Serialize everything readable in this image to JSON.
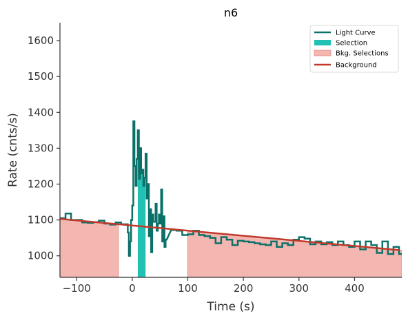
{
  "chart_data": {
    "type": "line",
    "title": "n6",
    "xlabel": "Time (s)",
    "ylabel": "Rate (cnts/s)",
    "xlim": [
      -130,
      485
    ],
    "ylim": [
      940,
      1650
    ],
    "xticks": [
      -100,
      0,
      100,
      200,
      300,
      400
    ],
    "yticks": [
      1000,
      1100,
      1200,
      1300,
      1400,
      1500,
      1600
    ],
    "grid": false,
    "legend_position": "top-right",
    "legend": [
      "Light Curve",
      "Selection",
      "Bkg. Selections",
      "Background"
    ],
    "colors": {
      "light_curve": "#0b7168",
      "selection": "#21c1b4",
      "bkg_selection_fill": "#f4b6b0",
      "bkg_selection_edge": "#e38b83",
      "background": "#c0392b"
    },
    "selection": [
      10,
      24
    ],
    "bkg_selections": [
      [
        -130,
        -25
      ],
      [
        100,
        485
      ]
    ],
    "background": {
      "x": [
        -130,
        480
      ],
      "y": [
        1103,
        1016
      ]
    },
    "light_curve": {
      "coarse_x": [
        -130,
        -120,
        -110,
        -100,
        -90,
        -80,
        -70,
        -60,
        -50,
        -40,
        -30,
        -20,
        -10,
        60,
        70,
        80,
        90,
        100,
        110,
        120,
        130,
        140,
        150,
        160,
        170,
        180,
        190,
        200,
        210,
        220,
        230,
        240,
        250,
        260,
        270,
        280,
        290,
        300,
        310,
        320,
        330,
        340,
        350,
        360,
        370,
        380,
        390,
        400,
        410,
        420,
        430,
        440,
        450,
        460,
        470,
        480
      ],
      "coarse_y": [
        1105,
        1118,
        1100,
        1100,
        1093,
        1092,
        1094,
        1098,
        1090,
        1087,
        1093,
        1088,
        1090,
        1072,
        1072,
        1070,
        1058,
        1060,
        1070,
        1058,
        1055,
        1050,
        1035,
        1052,
        1045,
        1030,
        1042,
        1040,
        1038,
        1035,
        1032,
        1030,
        1040,
        1025,
        1035,
        1030,
        1045,
        1052,
        1048,
        1032,
        1040,
        1032,
        1038,
        1030,
        1040,
        1030,
        1025,
        1040,
        1018,
        1040,
        1030,
        1008,
        1040,
        1005,
        1025,
        1005
      ],
      "coarse_end": 485,
      "fine_x": [
        -10,
        -8,
        -6,
        -4,
        -2,
        0,
        2,
        4,
        6,
        8,
        10,
        12,
        14,
        16,
        18,
        20,
        22,
        24,
        26,
        28,
        30,
        32,
        34,
        36,
        38,
        40,
        42,
        44,
        46,
        48,
        50,
        52,
        54,
        56,
        58,
        60
      ],
      "fine_y": [
        1088,
        1065,
        1000,
        1040,
        1100,
        1140,
        1375,
        1250,
        1195,
        1270,
        1350,
        1215,
        1300,
        1230,
        1240,
        1195,
        1218,
        1285,
        1160,
        1200,
        1055,
        1130,
        1010,
        1115,
        1095,
        1095,
        1145,
        1070,
        1090,
        1115,
        1090,
        1185,
        1040,
        1110,
        1025,
        1045
      ]
    }
  }
}
